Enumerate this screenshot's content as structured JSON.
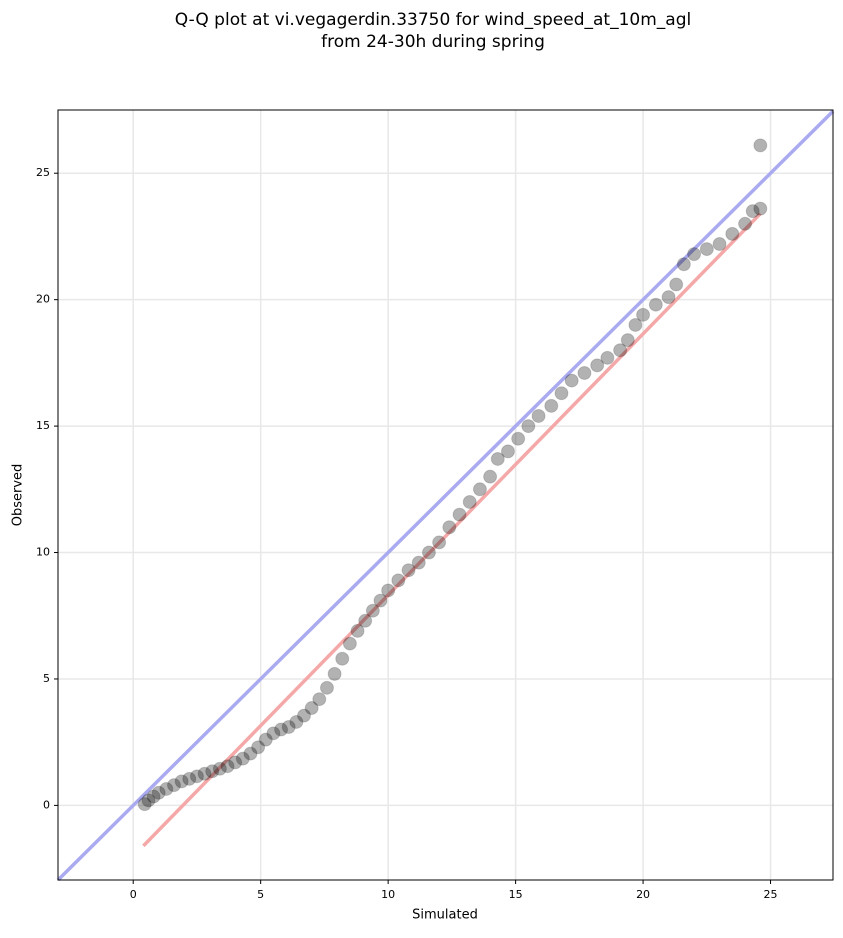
{
  "chart_data": {
    "type": "scatter",
    "title": [
      "Q-Q plot at vi.vegagerdin.33750 for wind_speed_at_10m_agl",
      "from 24-30h during spring"
    ],
    "x_label": "Simulated",
    "y_label": "Observed",
    "xlim": [
      -2.95,
      27.45
    ],
    "ylim": [
      -2.95,
      27.5
    ],
    "xticks": [
      0,
      5,
      10,
      15,
      20,
      25
    ],
    "yticks": [
      0,
      5,
      10,
      15,
      20,
      25
    ],
    "grid": true,
    "series": [
      {
        "mode": "line",
        "color": "#aaaaf0",
        "x": [
          -2.95,
          27.45
        ],
        "values": [
          -2.95,
          27.45
        ]
      },
      {
        "mode": "line",
        "color": "#f4a8a8",
        "x": [
          0.4,
          24.6
        ],
        "values": [
          -1.6,
          23.4
        ]
      },
      {
        "mode": "markers",
        "color": "#000000",
        "x": [
          0.45,
          0.6,
          0.8,
          1.0,
          1.3,
          1.6,
          1.9,
          2.2,
          2.5,
          2.8,
          3.1,
          3.4,
          3.7,
          4.0,
          4.3,
          4.6,
          4.9,
          5.2,
          5.5,
          5.8,
          6.1,
          6.4,
          6.7,
          7.0,
          7.3,
          7.6,
          7.9,
          8.2,
          8.5,
          8.8,
          9.1,
          9.4,
          9.7,
          10.0,
          10.4,
          10.8,
          11.2,
          11.6,
          12.0,
          12.4,
          12.8,
          13.2,
          13.6,
          14.0,
          14.3,
          14.7,
          15.1,
          15.5,
          15.9,
          16.4,
          16.8,
          17.2,
          17.7,
          18.2,
          18.6,
          19.1,
          19.4,
          19.7,
          20.0,
          20.5,
          21.0,
          21.3,
          21.6,
          22.0,
          22.5,
          23.0,
          23.5,
          24.0,
          24.3,
          24.6,
          24.6
        ],
        "values": [
          0.05,
          0.2,
          0.35,
          0.5,
          0.65,
          0.8,
          0.95,
          1.05,
          1.15,
          1.25,
          1.35,
          1.45,
          1.55,
          1.7,
          1.85,
          2.05,
          2.3,
          2.6,
          2.85,
          3.0,
          3.1,
          3.3,
          3.55,
          3.85,
          4.2,
          4.65,
          5.2,
          5.8,
          6.4,
          6.9,
          7.3,
          7.7,
          8.1,
          8.5,
          8.9,
          9.3,
          9.6,
          10.0,
          10.4,
          11.0,
          11.5,
          12.0,
          12.5,
          13.0,
          13.7,
          14.0,
          14.5,
          15.0,
          15.4,
          15.8,
          16.3,
          16.8,
          17.1,
          17.4,
          17.7,
          18.0,
          18.4,
          19.0,
          19.4,
          19.8,
          20.1,
          20.6,
          21.4,
          21.8,
          22.0,
          22.2,
          22.6,
          23.0,
          23.5,
          23.6,
          26.1
        ]
      }
    ]
  }
}
